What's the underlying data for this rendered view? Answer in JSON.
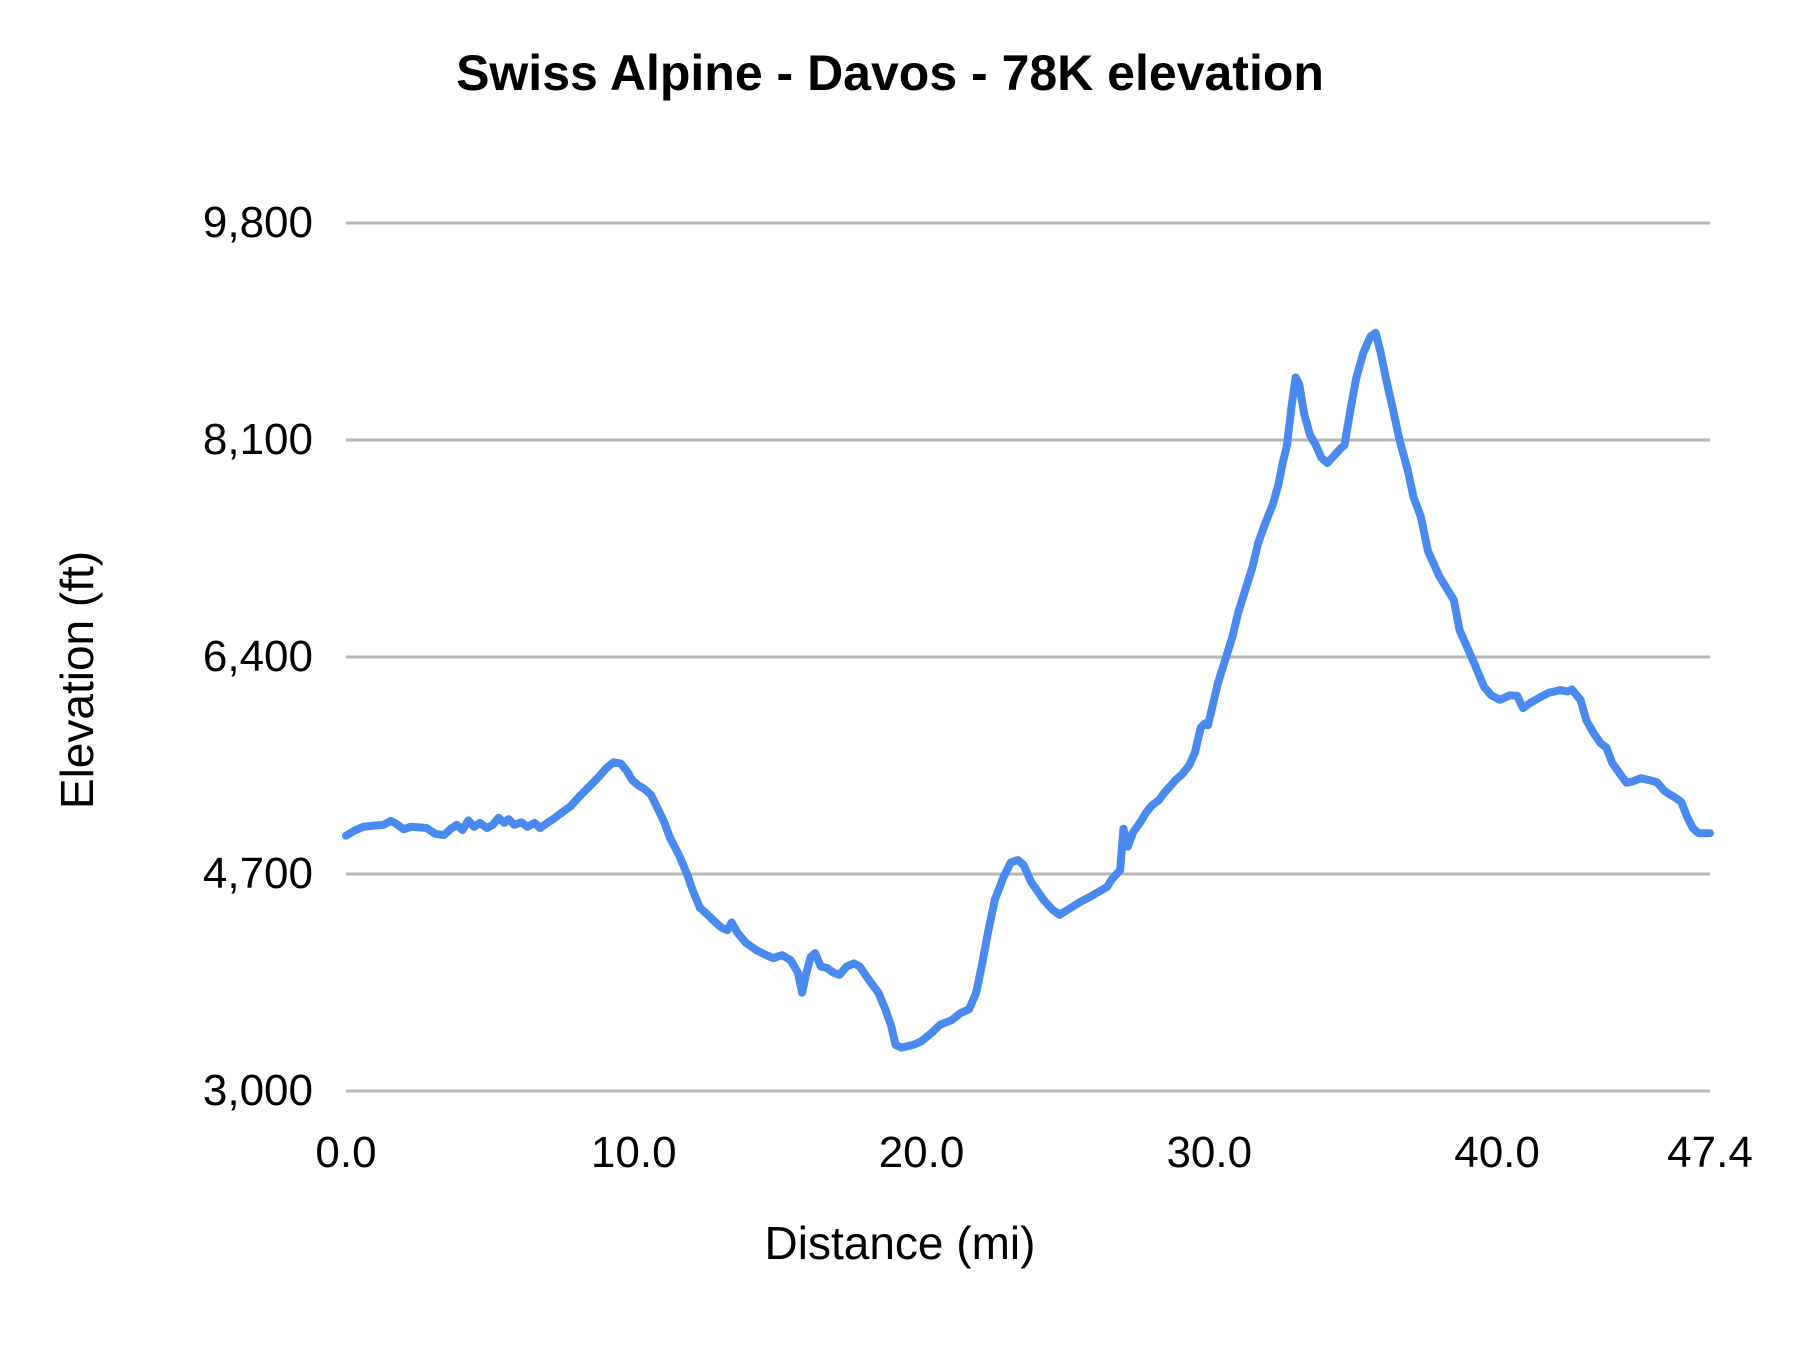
{
  "chart_data": {
    "type": "line",
    "title": "Swiss Alpine - Davos - 78K elevation",
    "xlabel": "Distance (mi)",
    "ylabel": "Elevation (ft)",
    "xlim": [
      0,
      47.4
    ],
    "ylim": [
      3000,
      9800
    ],
    "grid": "horizontal-only",
    "legend": "none",
    "background_color": "#ffffff",
    "gridline_color": "#b7b7b7",
    "x_ticks": {
      "values": [
        0,
        10,
        20,
        30,
        40,
        47.4
      ],
      "labels": [
        "0.0",
        "10.0",
        "20.0",
        "30.0",
        "40.0",
        "47.4"
      ]
    },
    "y_ticks": {
      "values": [
        3000,
        4700,
        6400,
        8100,
        9800
      ],
      "labels": [
        "3,000",
        "4,700",
        "6,400",
        "8,100",
        "9,800"
      ]
    },
    "series": [
      {
        "name": "Elevation (ft)",
        "color": "#4a8af0",
        "line_width": 8,
        "points": [
          [
            0,
            5000
          ],
          [
            0.3,
            5040
          ],
          [
            0.6,
            5070
          ],
          [
            1,
            5080
          ],
          [
            1.3,
            5085
          ],
          [
            1.55,
            5115
          ],
          [
            1.7,
            5100
          ],
          [
            2,
            5050
          ],
          [
            2.25,
            5070
          ],
          [
            2.55,
            5065
          ],
          [
            2.8,
            5060
          ],
          [
            3.1,
            5015
          ],
          [
            3.4,
            5005
          ],
          [
            3.65,
            5055
          ],
          [
            3.85,
            5085
          ],
          [
            4.05,
            5045
          ],
          [
            4.25,
            5120
          ],
          [
            4.45,
            5070
          ],
          [
            4.65,
            5100
          ],
          [
            4.9,
            5060
          ],
          [
            5.1,
            5085
          ],
          [
            5.3,
            5140
          ],
          [
            5.5,
            5100
          ],
          [
            5.65,
            5130
          ],
          [
            5.85,
            5085
          ],
          [
            6.1,
            5105
          ],
          [
            6.3,
            5070
          ],
          [
            6.55,
            5100
          ],
          [
            6.75,
            5060
          ],
          [
            7,
            5100
          ],
          [
            7.2,
            5130
          ],
          [
            7.5,
            5180
          ],
          [
            7.8,
            5230
          ],
          [
            8.1,
            5305
          ],
          [
            8.45,
            5385
          ],
          [
            8.8,
            5465
          ],
          [
            9.05,
            5530
          ],
          [
            9.3,
            5575
          ],
          [
            9.55,
            5565
          ],
          [
            9.75,
            5510
          ],
          [
            9.95,
            5435
          ],
          [
            10.15,
            5395
          ],
          [
            10.35,
            5370
          ],
          [
            10.6,
            5320
          ],
          [
            10.85,
            5205
          ],
          [
            11.05,
            5110
          ],
          [
            11.25,
            4990
          ],
          [
            11.6,
            4835
          ],
          [
            11.85,
            4700
          ],
          [
            12.05,
            4570
          ],
          [
            12.3,
            4435
          ],
          [
            12.5,
            4395
          ],
          [
            12.75,
            4340
          ],
          [
            13.05,
            4280
          ],
          [
            13.25,
            4260
          ],
          [
            13.4,
            4320
          ],
          [
            13.6,
            4240
          ],
          [
            13.9,
            4160
          ],
          [
            14.25,
            4105
          ],
          [
            14.6,
            4065
          ],
          [
            14.85,
            4040
          ],
          [
            15.15,
            4065
          ],
          [
            15.45,
            4025
          ],
          [
            15.7,
            3930
          ],
          [
            15.85,
            3770
          ],
          [
            16,
            3925
          ],
          [
            16.15,
            4050
          ],
          [
            16.3,
            4080
          ],
          [
            16.5,
            3975
          ],
          [
            16.7,
            3965
          ],
          [
            16.95,
            3925
          ],
          [
            17.15,
            3910
          ],
          [
            17.4,
            3975
          ],
          [
            17.65,
            4000
          ],
          [
            17.85,
            3975
          ],
          [
            18.05,
            3910
          ],
          [
            18.25,
            3845
          ],
          [
            18.5,
            3770
          ],
          [
            18.75,
            3635
          ],
          [
            18.95,
            3505
          ],
          [
            19.1,
            3360
          ],
          [
            19.3,
            3340
          ],
          [
            19.5,
            3350
          ],
          [
            19.7,
            3360
          ],
          [
            20,
            3390
          ],
          [
            20.35,
            3455
          ],
          [
            20.65,
            3520
          ],
          [
            21.05,
            3555
          ],
          [
            21.35,
            3610
          ],
          [
            21.65,
            3640
          ],
          [
            21.9,
            3770
          ],
          [
            22.1,
            3990
          ],
          [
            22.3,
            4230
          ],
          [
            22.55,
            4500
          ],
          [
            22.85,
            4675
          ],
          [
            23.1,
            4790
          ],
          [
            23.35,
            4810
          ],
          [
            23.55,
            4770
          ],
          [
            23.8,
            4640
          ],
          [
            24.05,
            4560
          ],
          [
            24.25,
            4495
          ],
          [
            24.55,
            4420
          ],
          [
            24.8,
            4380
          ],
          [
            25.15,
            4430
          ],
          [
            25.5,
            4480
          ],
          [
            25.85,
            4520
          ],
          [
            26.15,
            4560
          ],
          [
            26.45,
            4600
          ],
          [
            26.6,
            4655
          ],
          [
            26.9,
            4730
          ],
          [
            27.02,
            5055
          ],
          [
            27.17,
            4915
          ],
          [
            27.35,
            5025
          ],
          [
            27.6,
            5105
          ],
          [
            27.8,
            5180
          ],
          [
            28,
            5235
          ],
          [
            28.25,
            5280
          ],
          [
            28.45,
            5340
          ],
          [
            28.65,
            5390
          ],
          [
            28.85,
            5440
          ],
          [
            29.05,
            5480
          ],
          [
            29.3,
            5550
          ],
          [
            29.5,
            5650
          ],
          [
            29.7,
            5845
          ],
          [
            29.85,
            5880
          ],
          [
            29.95,
            5865
          ],
          [
            30.15,
            6050
          ],
          [
            30.3,
            6195
          ],
          [
            30.55,
            6375
          ],
          [
            30.8,
            6555
          ],
          [
            31,
            6745
          ],
          [
            31.25,
            6925
          ],
          [
            31.5,
            7105
          ],
          [
            31.7,
            7295
          ],
          [
            31.95,
            7450
          ],
          [
            32.2,
            7590
          ],
          [
            32.4,
            7750
          ],
          [
            32.55,
            7920
          ],
          [
            32.7,
            8060
          ],
          [
            32.85,
            8350
          ],
          [
            33,
            8590
          ],
          [
            33.12,
            8540
          ],
          [
            33.3,
            8300
          ],
          [
            33.5,
            8140
          ],
          [
            33.7,
            8060
          ],
          [
            33.9,
            7960
          ],
          [
            34.1,
            7920
          ],
          [
            34.35,
            7980
          ],
          [
            34.55,
            8030
          ],
          [
            34.7,
            8060
          ],
          [
            34.9,
            8330
          ],
          [
            35.1,
            8580
          ],
          [
            35.35,
            8780
          ],
          [
            35.6,
            8910
          ],
          [
            35.78,
            8940
          ],
          [
            35.95,
            8790
          ],
          [
            36.15,
            8570
          ],
          [
            36.4,
            8320
          ],
          [
            36.6,
            8110
          ],
          [
            36.9,
            7860
          ],
          [
            37.1,
            7650
          ],
          [
            37.35,
            7500
          ],
          [
            37.6,
            7230
          ],
          [
            38,
            7030
          ],
          [
            38.5,
            6845
          ],
          [
            38.7,
            6610
          ],
          [
            39.2,
            6355
          ],
          [
            39.55,
            6165
          ],
          [
            39.8,
            6100
          ],
          [
            40.1,
            6065
          ],
          [
            40.45,
            6100
          ],
          [
            40.7,
            6095
          ],
          [
            40.9,
            6000
          ],
          [
            41.15,
            6040
          ],
          [
            41.5,
            6085
          ],
          [
            41.8,
            6120
          ],
          [
            42.2,
            6140
          ],
          [
            42.45,
            6130
          ],
          [
            42.6,
            6145
          ],
          [
            42.9,
            6065
          ],
          [
            43.1,
            5905
          ],
          [
            43.35,
            5805
          ],
          [
            43.6,
            5725
          ],
          [
            43.8,
            5690
          ],
          [
            44,
            5570
          ],
          [
            44.3,
            5475
          ],
          [
            44.5,
            5415
          ],
          [
            44.7,
            5425
          ],
          [
            45,
            5450
          ],
          [
            45.3,
            5435
          ],
          [
            45.55,
            5420
          ],
          [
            45.8,
            5355
          ],
          [
            45.95,
            5330
          ],
          [
            46.15,
            5305
          ],
          [
            46.4,
            5265
          ],
          [
            46.6,
            5150
          ],
          [
            46.8,
            5060
          ],
          [
            47,
            5020
          ],
          [
            47.2,
            5020
          ],
          [
            47.4,
            5020
          ]
        ]
      }
    ]
  }
}
